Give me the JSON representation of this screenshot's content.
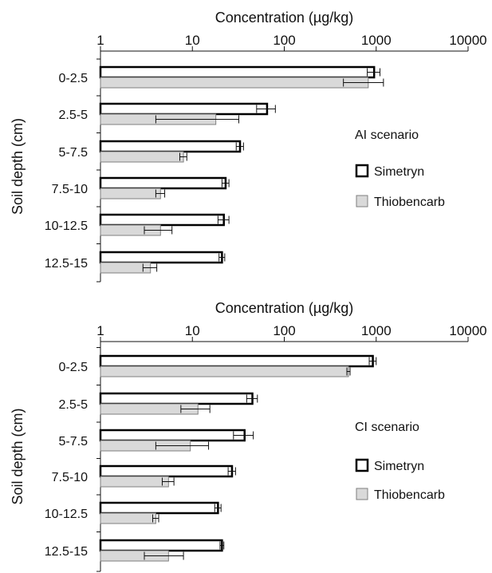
{
  "chart_data": [
    {
      "type": "bar",
      "orientation": "horizontal",
      "scenario_label": "AI scenario",
      "xlabel": "Concentration (µg/kg)",
      "ylabel": "Soil depth (cm)",
      "xscale": "log",
      "xlim": [
        1,
        10000
      ],
      "xticks": [
        "1",
        "10",
        "100",
        "1000",
        "10000"
      ],
      "categories": [
        "0-2.5",
        "2.5-5",
        "5-7.5",
        "7.5-10",
        "10-12.5",
        "12.5-15"
      ],
      "legend_position": "right",
      "series": [
        {
          "name": "Simetryn",
          "values": [
            950,
            65,
            33,
            23,
            22,
            21
          ],
          "errors": [
            150,
            15,
            3,
            2,
            3,
            1.5
          ]
        },
        {
          "name": "Thiobencarb",
          "values": [
            820,
            18,
            8,
            4.5,
            4.5,
            3.5
          ],
          "errors": [
            380,
            14,
            0.7,
            0.5,
            1.5,
            0.6
          ]
        }
      ]
    },
    {
      "type": "bar",
      "orientation": "horizontal",
      "scenario_label": "CI scenario",
      "xlabel": "Concentration (µg/kg)",
      "ylabel": "Soil depth (cm)",
      "xscale": "log",
      "xlim": [
        1,
        10000
      ],
      "xticks": [
        "1",
        "10",
        "100",
        "1000",
        "10000"
      ],
      "categories": [
        "0-2.5",
        "2.5-5",
        "5-7.5",
        "7.5-10",
        "10-12.5",
        "12.5-15"
      ],
      "legend_position": "right",
      "series": [
        {
          "name": "Simetryn",
          "values": [
            920,
            45,
            37,
            27,
            19,
            21
          ],
          "errors": [
            80,
            6,
            9,
            2.5,
            1.5,
            1
          ]
        },
        {
          "name": "Thiobencarb",
          "values": [
            500,
            11.5,
            9.5,
            5.5,
            4,
            5.5
          ],
          "errors": [
            20,
            4,
            5.5,
            0.8,
            0.3,
            2.5
          ]
        }
      ]
    }
  ],
  "colors": {
    "simetryn_fill": "#ffffff",
    "simetryn_stroke": "#000000",
    "thiobencarb_fill": "#d9d9d9",
    "thiobencarb_stroke": "#7f7f7f"
  }
}
